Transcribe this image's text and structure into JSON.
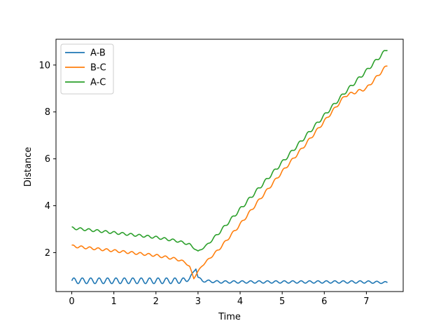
{
  "chart_data": {
    "type": "line",
    "title": "",
    "xlabel": "Time",
    "ylabel": "Distance",
    "xlim": [
      -0.375,
      7.875
    ],
    "ylim": [
      0.34,
      11.1
    ],
    "xticks": [
      0,
      1,
      2,
      3,
      4,
      5,
      6,
      7
    ],
    "yticks": [
      2,
      4,
      6,
      8,
      10
    ],
    "grid": false,
    "legend_position": "upper-left",
    "oscillation_note_period": 0.2,
    "series": [
      {
        "name": "A-B",
        "color": "#1f77b4",
        "x": [
          0,
          0.5,
          1.0,
          1.5,
          2.0,
          2.5,
          2.7,
          2.8,
          2.9,
          2.95,
          3.0,
          3.1,
          3.5,
          4.0,
          5.0,
          6.0,
          7.0,
          7.5
        ],
        "y": [
          0.8,
          0.8,
          0.8,
          0.8,
          0.8,
          0.8,
          0.82,
          0.9,
          1.2,
          1.3,
          0.95,
          0.8,
          0.75,
          0.75,
          0.75,
          0.75,
          0.75,
          0.72
        ],
        "osc_amp": [
          0.12,
          0.12,
          0.12,
          0.12,
          0.12,
          0.12,
          0.1,
          0.06,
          0.02,
          0.0,
          0.03,
          0.05,
          0.05,
          0.05,
          0.05,
          0.05,
          0.05,
          0.04
        ]
      },
      {
        "name": "B-C",
        "color": "#ff7f0e",
        "x": [
          0,
          0.5,
          1.0,
          1.5,
          2.0,
          2.5,
          2.7,
          2.8,
          2.9,
          3.0,
          3.1,
          3.5,
          4.0,
          4.5,
          5.0,
          5.5,
          6.0,
          6.5,
          7.0,
          7.5
        ],
        "y": [
          2.28,
          2.18,
          2.08,
          1.98,
          1.88,
          1.72,
          1.58,
          1.4,
          0.9,
          1.2,
          1.45,
          2.15,
          3.2,
          4.35,
          5.45,
          6.5,
          7.6,
          8.7,
          9.0,
          10.0
        ],
        "osc_amp": [
          0.05,
          0.05,
          0.05,
          0.05,
          0.05,
          0.05,
          0.04,
          0.03,
          0.02,
          0.02,
          0.03,
          0.05,
          0.06,
          0.06,
          0.06,
          0.06,
          0.06,
          0.06,
          0.06,
          0.06
        ]
      },
      {
        "name": "A-C",
        "color": "#2ca02c",
        "x": [
          0,
          0.5,
          1.0,
          1.5,
          2.0,
          2.5,
          2.8,
          3.0,
          3.2,
          3.5,
          4.0,
          4.5,
          5.0,
          5.5,
          6.0,
          6.5,
          7.0,
          7.5
        ],
        "y": [
          3.05,
          2.95,
          2.85,
          2.75,
          2.65,
          2.5,
          2.35,
          2.05,
          2.3,
          2.85,
          3.85,
          4.85,
          5.85,
          6.85,
          7.85,
          8.85,
          9.75,
          10.7
        ],
        "osc_amp": [
          0.05,
          0.05,
          0.05,
          0.05,
          0.05,
          0.05,
          0.04,
          0.02,
          0.04,
          0.06,
          0.07,
          0.07,
          0.07,
          0.07,
          0.07,
          0.07,
          0.07,
          0.07
        ]
      }
    ]
  }
}
